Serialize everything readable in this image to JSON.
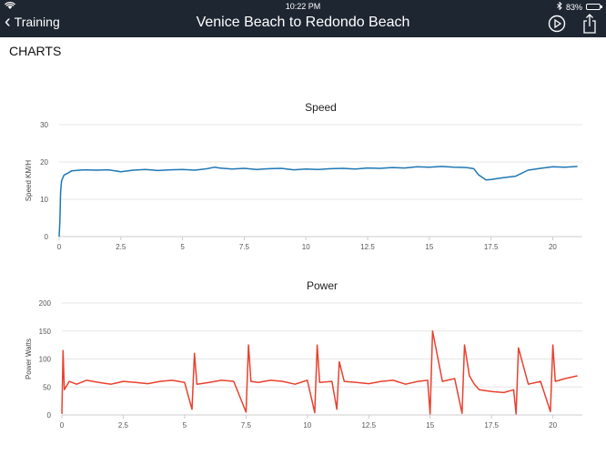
{
  "status": {
    "time": "10:22 PM",
    "battery": "83%",
    "battery_level": 0.83,
    "signal": "wifi",
    "bluetooth": "bluetooth-icon"
  },
  "nav": {
    "back_label": "Training",
    "title": "Venice Beach to Redondo Beach",
    "icons": [
      "play-circle-icon",
      "share-icon"
    ]
  },
  "section": {
    "title": "CHARTS"
  },
  "colors": {
    "header_bg": "#1e2632",
    "speed_line": "#1f77b4",
    "power_line": "#e8412e",
    "grid": "#e6e6e6"
  },
  "chart_data": [
    {
      "type": "line",
      "title": "Speed",
      "ylabel": "Speed KM/H",
      "xlim": [
        0,
        21.2
      ],
      "ylim": [
        0,
        30
      ],
      "x_ticks": [
        0,
        2.5,
        5,
        7.5,
        10,
        12.5,
        15,
        17.5,
        20
      ],
      "x_tick_labels": [
        "0",
        "2.5",
        "5",
        "7.5",
        "10",
        "12.5",
        "15",
        "17.5",
        "20"
      ],
      "y_ticks": [
        0,
        10,
        20,
        30
      ],
      "y_tick_labels": [
        "0",
        "10",
        "20",
        "30"
      ],
      "series": [
        {
          "x": [
            0,
            0.03,
            0.06,
            0.1,
            0.2,
            0.35,
            0.5,
            1,
            1.5,
            2,
            2.5,
            3,
            3.5,
            4,
            4.5,
            5,
            5.5,
            6,
            6.3,
            6.5,
            7,
            7.5,
            8,
            8.5,
            9,
            9.5,
            10,
            10.5,
            11,
            11.5,
            12,
            12.5,
            13,
            13.5,
            14,
            14.5,
            15,
            15.5,
            16,
            16.5,
            16.8,
            17,
            17.3,
            17.5,
            18,
            18.5,
            19,
            19.5,
            20,
            20.5,
            21
          ],
          "values": [
            0,
            4,
            12,
            15,
            16.5,
            17,
            17.6,
            17.9,
            17.8,
            17.9,
            17.4,
            17.8,
            18.0,
            17.7,
            17.9,
            18.0,
            17.8,
            18.2,
            18.6,
            18.4,
            18.1,
            18.3,
            18.0,
            18.2,
            18.3,
            17.9,
            18.1,
            18.0,
            18.2,
            18.3,
            18.1,
            18.4,
            18.3,
            18.5,
            18.4,
            18.7,
            18.6,
            18.8,
            18.6,
            18.5,
            18.2,
            16.5,
            15.2,
            15.3,
            15.8,
            16.2,
            17.8,
            18.3,
            18.7,
            18.6,
            18.8
          ]
        }
      ]
    },
    {
      "type": "line",
      "title": "Power",
      "ylabel": "Power Watts",
      "xlim": [
        0,
        21.2
      ],
      "ylim": [
        0,
        200
      ],
      "x_ticks": [
        0,
        2.5,
        5,
        7.5,
        10,
        12.5,
        15,
        17.5,
        20
      ],
      "x_tick_labels": [
        "0",
        "2.5",
        "5",
        "7.5",
        "10",
        "12.5",
        "15",
        "17.5",
        "20"
      ],
      "y_ticks": [
        0,
        50,
        100,
        150,
        200
      ],
      "y_tick_labels": [
        "0",
        "50",
        "100",
        "150",
        "200"
      ],
      "series": [
        {
          "x": [
            0,
            0.05,
            0.1,
            0.3,
            0.6,
            1,
            1.5,
            2,
            2.5,
            3,
            3.5,
            4,
            4.5,
            5,
            5.3,
            5.4,
            5.5,
            6,
            6.5,
            7,
            7.5,
            7.6,
            7.7,
            8,
            8.5,
            9,
            9.5,
            10,
            10.3,
            10.4,
            10.5,
            11,
            11.2,
            11.3,
            11.5,
            12,
            12.5,
            13,
            13.5,
            14,
            14.5,
            14.9,
            15.0,
            15.1,
            15.5,
            16,
            16.3,
            16.4,
            16.6,
            16.8,
            17,
            17.5,
            18,
            18.4,
            18.5,
            18.6,
            19,
            19.5,
            19.9,
            20,
            20.1,
            20.5,
            21
          ],
          "values": [
            2,
            115,
            45,
            60,
            55,
            62,
            58,
            55,
            60,
            58,
            56,
            60,
            62,
            58,
            10,
            110,
            55,
            58,
            62,
            60,
            5,
            125,
            60,
            58,
            62,
            60,
            55,
            62,
            4,
            125,
            58,
            60,
            10,
            95,
            60,
            58,
            56,
            60,
            62,
            55,
            60,
            62,
            2,
            150,
            60,
            65,
            3,
            125,
            70,
            55,
            45,
            42,
            40,
            45,
            2,
            120,
            55,
            60,
            6,
            125,
            60,
            65,
            70
          ]
        }
      ]
    }
  ]
}
